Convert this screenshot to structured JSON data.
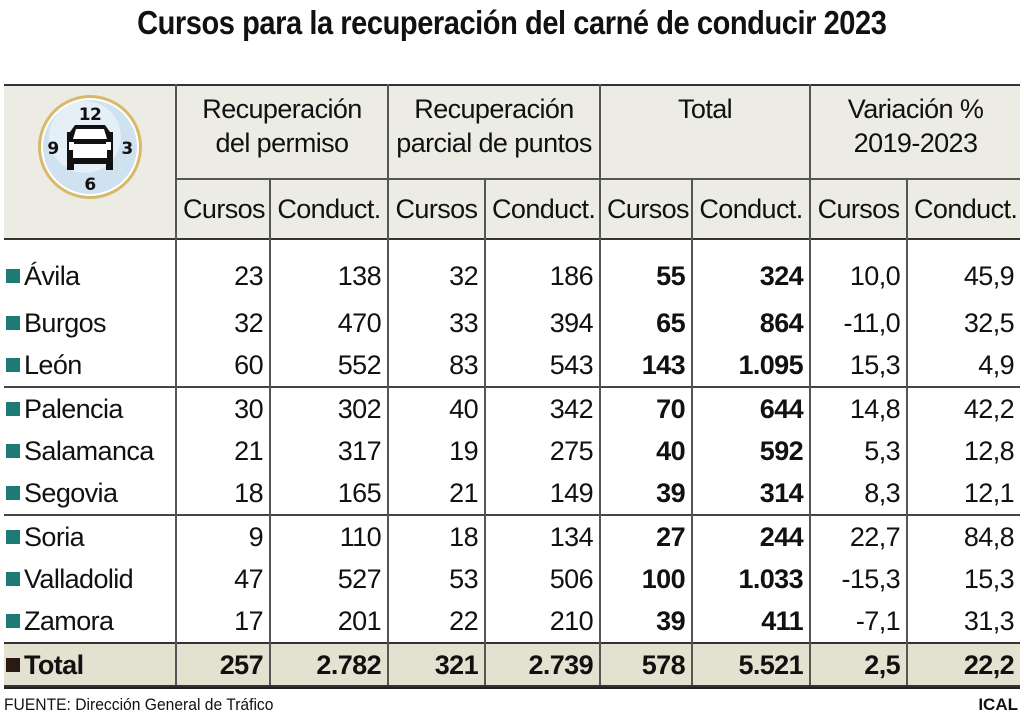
{
  "title": "Cursos para la recuperación del carné de conducir 2023",
  "icon": {
    "name": "clock-car-icon",
    "numbers": [
      "12",
      "3",
      "6",
      "9"
    ]
  },
  "groups": [
    "Recuperación del permiso",
    "Recuperación parcial de puntos",
    "Total",
    "Variación % 2019-2023"
  ],
  "group_lines": [
    [
      "Recuperación",
      "del permiso"
    ],
    [
      "Recuperación",
      "parcial de puntos"
    ],
    [
      "Total",
      ""
    ],
    [
      "Variación %",
      "2019-2023"
    ]
  ],
  "subheaders": [
    "Cursos",
    "Conduct.",
    "Cursos",
    "Conduct.",
    "Cursos",
    "Conduct.",
    "Cursos",
    "Conduct."
  ],
  "colors": {
    "province_marker": "#1d7a74",
    "total_marker": "#2a1a14",
    "header_bg": "#ecece4",
    "total_bg": "#e3e1cf"
  },
  "chart_data": {
    "type": "table",
    "title": "Cursos para la recuperación del carné de conducir 2023",
    "rows": [
      {
        "label": "Ávila",
        "values": [
          "23",
          "138",
          "32",
          "186",
          "55",
          "324",
          "10,0",
          "45,9"
        ]
      },
      {
        "label": "Burgos",
        "values": [
          "32",
          "470",
          "33",
          "394",
          "65",
          "864",
          "-11,0",
          "32,5"
        ]
      },
      {
        "label": "León",
        "values": [
          "60",
          "552",
          "83",
          "543",
          "143",
          "1.095",
          "15,3",
          "4,9"
        ]
      },
      {
        "label": "Palencia",
        "values": [
          "30",
          "302",
          "40",
          "342",
          "70",
          "644",
          "14,8",
          "42,2"
        ]
      },
      {
        "label": "Salamanca",
        "values": [
          "21",
          "317",
          "19",
          "275",
          "40",
          "592",
          "5,3",
          "12,8"
        ]
      },
      {
        "label": "Segovia",
        "values": [
          "18",
          "165",
          "21",
          "149",
          "39",
          "314",
          "8,3",
          "12,1"
        ]
      },
      {
        "label": "Soria",
        "values": [
          "9",
          "110",
          "18",
          "134",
          "27",
          "244",
          "22,7",
          "84,8"
        ]
      },
      {
        "label": "Valladolid",
        "values": [
          "47",
          "527",
          "53",
          "506",
          "100",
          "1.033",
          "-15,3",
          "15,3"
        ]
      },
      {
        "label": "Zamora",
        "values": [
          "17",
          "201",
          "22",
          "210",
          "39",
          "411",
          "-7,1",
          "31,3"
        ]
      }
    ],
    "total": {
      "label": "Total",
      "values": [
        "257",
        "2.782",
        "321",
        "2.739",
        "578",
        "5.521",
        "2,5",
        "22,2"
      ]
    }
  },
  "footer": {
    "source": "FUENTE: Dirección General de Tráfico",
    "credit": "ICAL"
  }
}
